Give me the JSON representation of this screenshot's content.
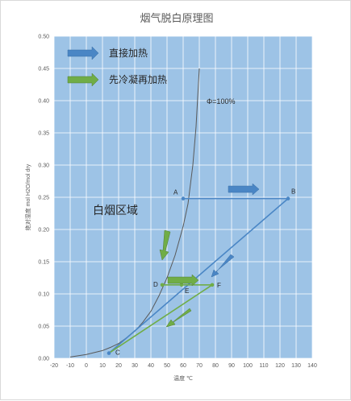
{
  "chart_data": {
    "type": "line",
    "title": "烟气脱白原理图",
    "xlabel": "温度 ℃",
    "ylabel": "绝对湿度 mol H2O/mol dry",
    "xlim": [
      -20,
      140
    ],
    "ylim": [
      0,
      0.5
    ],
    "x_ticks": [
      "-20",
      "-10",
      "0",
      "10",
      "20",
      "30",
      "40",
      "50",
      "60",
      "70",
      "80",
      "90",
      "100",
      "110",
      "120",
      "130",
      "140"
    ],
    "y_ticks": [
      "0.00",
      "0.05",
      "0.10",
      "0.15",
      "0.20",
      "0.25",
      "0.30",
      "0.35",
      "0.40",
      "0.45",
      "0.50"
    ],
    "grid": true,
    "background": "#9dc3e6",
    "legend": [
      {
        "label": "直接加热",
        "color": "#4a86c5"
      },
      {
        "label": "先冷凝再加热",
        "color": "#70ad47"
      }
    ],
    "saturation_curve": {
      "label": "Φ=100%",
      "color": "#595959",
      "points": [
        [
          -10,
          0.002
        ],
        [
          0,
          0.006
        ],
        [
          10,
          0.012
        ],
        [
          15,
          0.017
        ],
        [
          20,
          0.023
        ],
        [
          25,
          0.032
        ],
        [
          30,
          0.042
        ],
        [
          35,
          0.056
        ],
        [
          40,
          0.073
        ],
        [
          45,
          0.097
        ],
        [
          50,
          0.125
        ],
        [
          55,
          0.16
        ],
        [
          60,
          0.205
        ],
        [
          63,
          0.24
        ],
        [
          66,
          0.3
        ],
        [
          68,
          0.36
        ],
        [
          70,
          0.45
        ]
      ]
    },
    "points": [
      {
        "name": "A",
        "x": 60,
        "y": 0.248
      },
      {
        "name": "B",
        "x": 125,
        "y": 0.248
      },
      {
        "name": "C",
        "x": 14,
        "y": 0.008
      },
      {
        "name": "D",
        "x": 47,
        "y": 0.114
      },
      {
        "name": "E",
        "x": 59,
        "y": 0.114
      },
      {
        "name": "F",
        "x": 78,
        "y": 0.114
      }
    ],
    "series": [
      {
        "color": "#4a86c5",
        "points": [
          [
            60,
            0.248
          ],
          [
            125,
            0.248
          ]
        ]
      },
      {
        "color": "#4a86c5",
        "points": [
          [
            125,
            0.248
          ],
          [
            14,
            0.008
          ]
        ]
      },
      {
        "color": "#70ad47",
        "points": [
          [
            47,
            0.114
          ],
          [
            78,
            0.114
          ]
        ]
      },
      {
        "color": "#70ad47",
        "points": [
          [
            78,
            0.114
          ],
          [
            14,
            0.008
          ]
        ]
      }
    ],
    "annotations": [
      {
        "text": "白烟区域",
        "x": 5,
        "y": 0.228
      }
    ]
  }
}
